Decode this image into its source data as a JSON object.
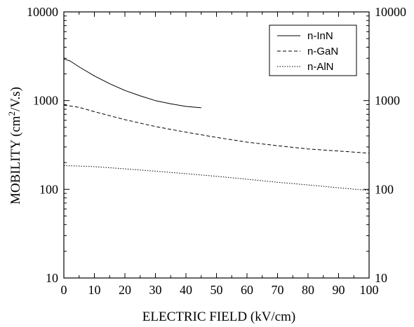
{
  "chart_data": {
    "type": "line",
    "xlabel": "ELECTRIC FIELD (kV/cm)",
    "ylabel_parts": [
      "MOBILITY (cm",
      "2",
      "/V.s)"
    ],
    "xlim": [
      0,
      100
    ],
    "ylim": [
      10,
      10000
    ],
    "y_scale": "log",
    "grid": false,
    "legend_position": "top-right",
    "x_ticks": [
      0,
      10,
      20,
      30,
      40,
      50,
      60,
      70,
      80,
      90,
      100
    ],
    "x_tick_labels": [
      "0",
      "10",
      "20",
      "30",
      "40",
      "50",
      "60",
      "70",
      "80",
      "90",
      "100"
    ],
    "y_ticks": [
      10,
      100,
      1000,
      10000
    ],
    "y_tick_labels_left": [
      "10",
      "100",
      "1000",
      "10000"
    ],
    "y_tick_labels_right": [
      "10",
      "100",
      "1000",
      "10000"
    ],
    "series": [
      {
        "name": "n-InN",
        "dash": "solid",
        "color": "#000000",
        "x": [
          0,
          2,
          5,
          10,
          15,
          20,
          25,
          30,
          35,
          40,
          45
        ],
        "y": [
          2950,
          2800,
          2400,
          1900,
          1550,
          1300,
          1130,
          1000,
          920,
          860,
          830
        ]
      },
      {
        "name": "n-GaN",
        "dash": "dashed",
        "color": "#000000",
        "x": [
          0,
          5,
          10,
          20,
          30,
          40,
          50,
          60,
          70,
          80,
          90,
          100
        ],
        "y": [
          890,
          840,
          750,
          610,
          510,
          440,
          385,
          340,
          310,
          285,
          270,
          255
        ]
      },
      {
        "name": "n-AlN",
        "dash": "dotted",
        "color": "#000000",
        "x": [
          0,
          5,
          10,
          20,
          30,
          40,
          50,
          60,
          70,
          80,
          90,
          100
        ],
        "y": [
          185,
          183,
          180,
          170,
          160,
          150,
          140,
          130,
          120,
          112,
          104,
          97
        ]
      }
    ]
  }
}
